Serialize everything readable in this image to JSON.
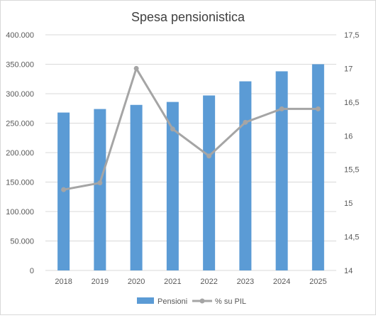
{
  "chart_data": {
    "type": "bar",
    "title": "Spesa pensionistica",
    "categories": [
      "2018",
      "2019",
      "2020",
      "2021",
      "2022",
      "2023",
      "2024",
      "2025"
    ],
    "series": [
      {
        "name": "Pensioni",
        "type": "bar",
        "axis": "left",
        "color": "#5b9bd5",
        "values": [
          268000,
          274000,
          281000,
          286000,
          297000,
          321000,
          338000,
          350000
        ]
      },
      {
        "name": "% su PIL",
        "type": "line",
        "axis": "right",
        "color": "#a5a5a5",
        "values": [
          15.2,
          15.3,
          17.0,
          16.1,
          15.7,
          16.2,
          16.4,
          16.4
        ]
      }
    ],
    "y_left": {
      "min": 0,
      "max": 400000,
      "ticks": [
        "0",
        "50.000",
        "100.000",
        "150.000",
        "200.000",
        "250.000",
        "300.000",
        "350.000",
        "400.000"
      ]
    },
    "y_right": {
      "min": 14,
      "max": 17.5,
      "ticks": [
        "14",
        "14,5",
        "15",
        "15,5",
        "16",
        "16,5",
        "17",
        "17,5"
      ]
    },
    "grid": true,
    "legend_position": "bottom"
  }
}
